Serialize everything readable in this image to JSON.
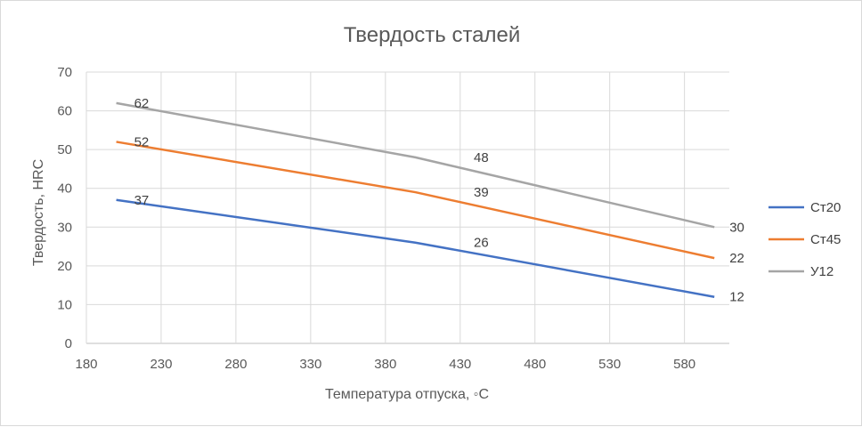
{
  "chart_data": {
    "type": "line",
    "title": "Твердость сталей",
    "xlabel": "Температура отпуска, ◦C",
    "ylabel": "Твердость, HRC",
    "xlim": [
      180,
      610
    ],
    "ylim": [
      0,
      70
    ],
    "x_ticks": [
      180,
      230,
      280,
      330,
      380,
      430,
      480,
      530,
      580
    ],
    "y_ticks": [
      0,
      10,
      20,
      30,
      40,
      50,
      60,
      70
    ],
    "grid": true,
    "legend_position": "right",
    "series": [
      {
        "name": "Ст20",
        "color": "#4472c4",
        "x": [
          200,
          400,
          600
        ],
        "y": [
          37,
          26,
          12
        ],
        "labels": [
          "37",
          "26",
          "12"
        ]
      },
      {
        "name": "Ст45",
        "color": "#ed7d31",
        "x": [
          200,
          400,
          600
        ],
        "y": [
          52,
          39,
          22
        ],
        "labels": [
          "52",
          "39",
          "22"
        ]
      },
      {
        "name": "У12",
        "color": "#a5a5a5",
        "x": [
          200,
          400,
          600
        ],
        "y": [
          62,
          48,
          30
        ],
        "labels": [
          "62",
          "48",
          "30"
        ]
      }
    ]
  }
}
